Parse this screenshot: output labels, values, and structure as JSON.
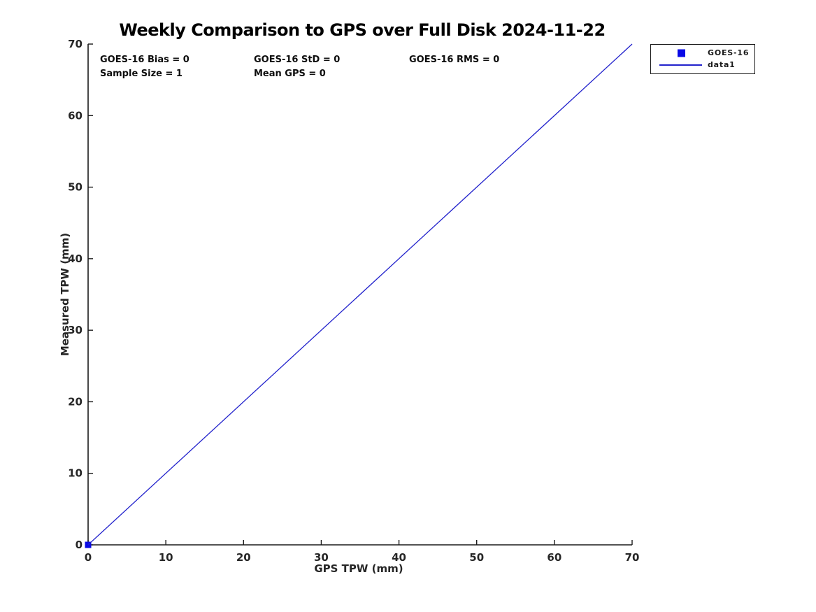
{
  "figure": {
    "title": "Weekly Comparison to GPS over Full Disk 2024-11-22",
    "stats": {
      "bias": "GOES-16 Bias = 0",
      "std": "GOES-16 StD = 0",
      "rms": "GOES-16 RMS = 0",
      "sample_size": "Sample Size = 1",
      "mean_gps": "Mean GPS = 0"
    },
    "legend": {
      "position": "top-right-outside",
      "items": [
        {
          "label": "GOES-16",
          "marker": "square"
        },
        {
          "label": "data1",
          "marker": "line"
        }
      ]
    }
  },
  "colors": {
    "marker_blue": "#0a0ae6",
    "line_blue": "#2222cc",
    "axis": "#1a1a1a",
    "tick_label": "#262626",
    "background": "#ffffff"
  },
  "chart_data": {
    "type": "scatter",
    "title": "Weekly Comparison to GPS over Full Disk 2024-11-22",
    "xlabel": "GPS TPW (mm)",
    "ylabel": "Measured TPW (mm)",
    "xlim": [
      0,
      70
    ],
    "ylim": [
      0,
      70
    ],
    "xticks": [
      0,
      10,
      20,
      30,
      40,
      50,
      60,
      70
    ],
    "yticks": [
      0,
      10,
      20,
      30,
      40,
      50,
      60,
      70
    ],
    "grid": false,
    "legend_position": "top-right-outside",
    "annotations": [
      "GOES-16 Bias = 0",
      "GOES-16 StD = 0",
      "GOES-16 RMS = 0",
      "Sample Size = 1",
      "Mean GPS = 0"
    ],
    "series": [
      {
        "name": "GOES-16",
        "type": "scatter",
        "marker": "square",
        "color": "#0a0ae6",
        "points": [
          [
            0,
            0
          ]
        ]
      },
      {
        "name": "data1",
        "type": "line",
        "color": "#2222cc",
        "x": [
          0,
          70
        ],
        "y": [
          0,
          70
        ]
      }
    ]
  }
}
